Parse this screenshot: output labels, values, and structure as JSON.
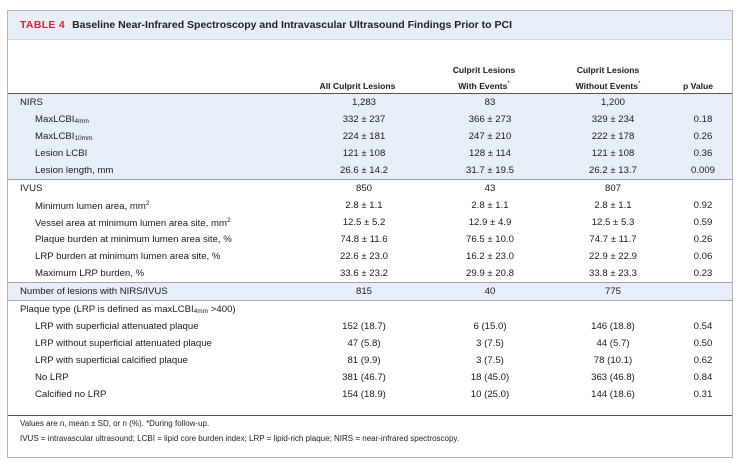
{
  "title": {
    "tag": "TABLE 4",
    "text": "Baseline Near-Infrared Spectroscopy and Intravascular Ultrasound Findings Prior to PCI"
  },
  "columns": {
    "all": "All Culprit Lesions",
    "with_events_l1": "Culprit Lesions",
    "with_events_l2": "With Events",
    "without_events_l1": "Culprit Lesions",
    "without_events_l2": "Without Events",
    "event_mark": "*",
    "pvalue": "p Value"
  },
  "nirs": {
    "header": {
      "label": "NIRS",
      "all": "1,283",
      "with": "83",
      "without": "1,200",
      "p": ""
    },
    "rows": [
      {
        "label": "MaxLCBI",
        "sub": "4mm",
        "all": "332 ± 237",
        "with": "366 ± 273",
        "without": "329 ± 234",
        "p": "0.18"
      },
      {
        "label": "MaxLCBI",
        "sub": "10mm",
        "all": "224 ± 181",
        "with": "247 ± 210",
        "without": "222 ± 178",
        "p": "0.26"
      },
      {
        "label": "Lesion LCBI",
        "all": "121 ± 108",
        "with": "128 ± 114",
        "without": "121 ± 108",
        "p": "0.36"
      },
      {
        "label": "Lesion length, mm",
        "all": "26.6 ± 14.2",
        "with": "31.7 ± 19.5",
        "without": "26.2 ± 13.7",
        "p": "0.009"
      }
    ]
  },
  "ivus": {
    "header": {
      "label": "IVUS",
      "all": "850",
      "with": "43",
      "without": "807",
      "p": ""
    },
    "rows": [
      {
        "label": "Minimum lumen area, mm",
        "sup": "2",
        "all": "2.8 ± 1.1",
        "with": "2.8 ± 1.1",
        "without": "2.8 ± 1.1",
        "p": "0.92"
      },
      {
        "label": "Vessel area at minimum lumen area site, mm",
        "sup": "2",
        "all": "12.5 ± 5.2",
        "with": "12.9 ± 4.9",
        "without": "12.5 ± 5.3",
        "p": "0.59"
      },
      {
        "label": "Plaque burden at minimum lumen area site, %",
        "all": "74.8 ± 11.6",
        "with": "76.5 ± 10.0",
        "without": "74.7 ± 11.7",
        "p": "0.26"
      },
      {
        "label": "LRP burden at minimum lumen area site, %",
        "all": "22.6 ± 23.0",
        "with": "16.2 ± 23.0",
        "without": "22.9 ± 22.9",
        "p": "0.06"
      },
      {
        "label": "Maximum LRP burden, %",
        "all": "33.6 ± 23.2",
        "with": "29.9 ± 20.8",
        "without": "33.8 ± 23.3",
        "p": "0.23"
      }
    ]
  },
  "lesions": {
    "label": "Number of lesions with NIRS/IVUS",
    "all": "815",
    "with": "40",
    "without": "775",
    "p": ""
  },
  "plaque_type": {
    "label_pre": "Plaque type (LRP is defined as maxLCBI",
    "label_sub": "4mm",
    "label_post": " >400)",
    "rows": [
      {
        "label": "LRP with superficial attenuated plaque",
        "all": "152 (18.7)",
        "with": "6 (15.0)",
        "without": "146 (18.8)",
        "p": "0.54"
      },
      {
        "label": "LRP without superficial attenuated plaque",
        "all": "47 (5.8)",
        "with": "3 (7.5)",
        "without": "44 (5.7)",
        "p": "0.50"
      },
      {
        "label": "LRP with superficial calcified plaque",
        "all": "81 (9.9)",
        "with": "3 (7.5)",
        "without": "78 (10.1)",
        "p": "0.62"
      },
      {
        "label": "No LRP",
        "all": "381 (46.7)",
        "with": "18 (45.0)",
        "without": "363 (46.8)",
        "p": "0.84"
      },
      {
        "label": "Calcified no LRP",
        "all": "154 (18.9)",
        "with": "10 (25.0)",
        "without": "144 (18.6)",
        "p": "0.31"
      }
    ]
  },
  "footnotes": {
    "line1": "Values are n, mean ± SD, or n (%). *During follow-up.",
    "line2": "IVUS = intravascular ultrasound; LCBI = lipid core burden index; LRP = lipid-rich plaque; NIRS = near-infrared spectroscopy."
  },
  "colors": {
    "accent": "#cc2a36",
    "shade": "#e8eef7"
  }
}
